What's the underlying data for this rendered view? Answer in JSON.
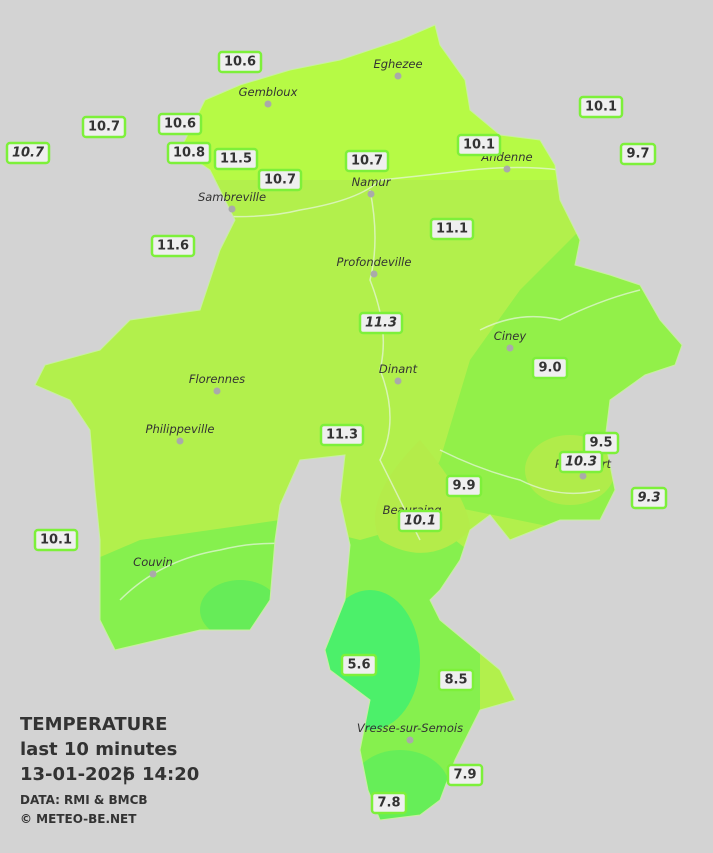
{
  "towns": [
    "Eghezee",
    "Gembloux",
    "Andenne",
    "Namur",
    "Sambreville",
    "Profondeville",
    "Ciney",
    "Dinant",
    "Florennes",
    "Philippeville",
    "Rochefort",
    "Beauraing",
    "Couvin",
    "Vresse-sur-Semois"
  ],
  "stations": [
    {
      "value": "10.6",
      "italic": false
    },
    {
      "value": "10.7",
      "italic": false
    },
    {
      "value": "10.6",
      "italic": false
    },
    {
      "value": "10.7",
      "italic": true
    },
    {
      "value": "10.8",
      "italic": false
    },
    {
      "value": "11.5",
      "italic": false
    },
    {
      "value": "10.7",
      "italic": false
    },
    {
      "value": "10.7",
      "italic": false
    },
    {
      "value": "10.1",
      "italic": false
    },
    {
      "value": "10.1",
      "italic": false
    },
    {
      "value": "9.7",
      "italic": false
    },
    {
      "value": "11.6",
      "italic": false
    },
    {
      "value": "11.1",
      "italic": false
    },
    {
      "value": "11.3",
      "italic": true
    },
    {
      "value": "9.0",
      "italic": false
    },
    {
      "value": "11.3",
      "italic": false
    },
    {
      "value": "9.5",
      "italic": false
    },
    {
      "value": "10.3",
      "italic": true
    },
    {
      "value": "9.9",
      "italic": false
    },
    {
      "value": "9.3",
      "italic": true
    },
    {
      "value": "10.1",
      "italic": true
    },
    {
      "value": "10.1",
      "italic": false
    },
    {
      "value": "5.6",
      "italic": false
    },
    {
      "value": "8.5",
      "italic": false
    },
    {
      "value": "7.9",
      "italic": false
    },
    {
      "value": "7.8",
      "italic": false
    }
  ],
  "legend": {
    "title": "TEMPERATURE",
    "subtitle": "last 10 minutes",
    "date": "13-01-2026",
    "time": "14:20",
    "source": "DATA: RMI & BMCB",
    "copyright": "© METEO-BE.NET"
  }
}
